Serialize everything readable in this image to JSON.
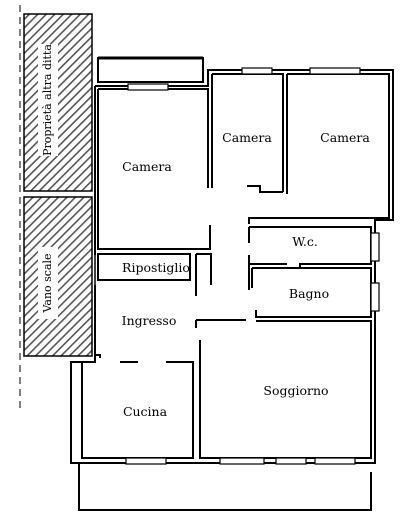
{
  "plan": {
    "colors": {
      "wall": "#000000",
      "background": "#ffffff",
      "hatch": "#555555"
    },
    "labels": {
      "proprieta": "Proprietà altra ditta",
      "vano_scale": "Vano scale",
      "camera_large": "Camera",
      "camera_mid": "Camera",
      "camera_right": "Camera",
      "wc": "W.c.",
      "ripostiglio": "Ripostiglio",
      "bagno": "Bagno",
      "ingresso": "Ingresso",
      "cucina": "Cucina",
      "soggiorno": "Soggiorno"
    }
  }
}
